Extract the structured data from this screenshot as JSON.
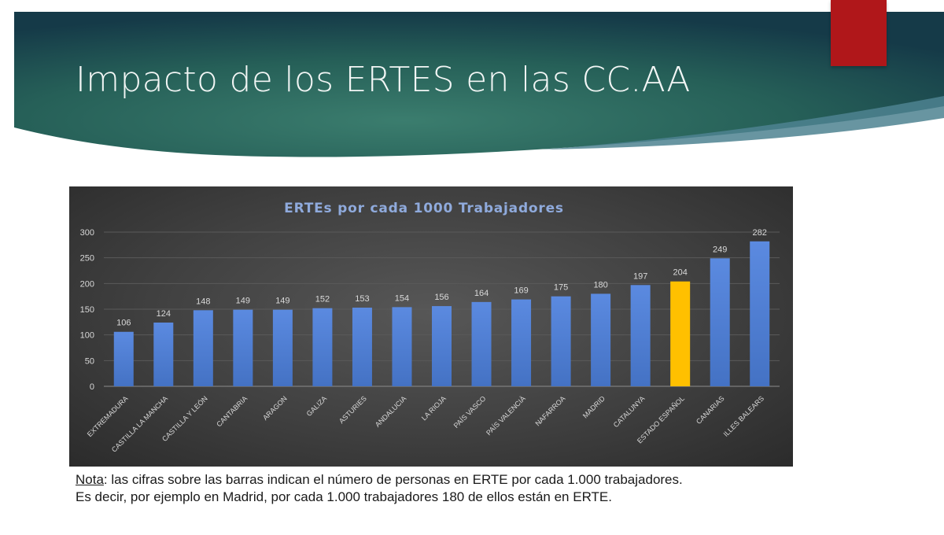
{
  "slide": {
    "title": "Impacto de los ERTES en las CC.AA",
    "note_label": "Nota",
    "note_line1": ": las cifras sobre las barras indican el número de personas en ERTE por cada 1.000 trabajadores.",
    "note_line2": "Es decir, por ejemplo en Madrid, por cada 1.000 trabajadores 180 de ellos están en ERTE.",
    "colors": {
      "banner_dark": "#143c4a",
      "banner_mid": "#2f7064",
      "accent_red": "#b0171a"
    }
  },
  "chart_data": {
    "type": "bar",
    "title": "ERTEs por cada 1000 Trabajadores",
    "categories": [
      "EXTREMADURA",
      "CASTILLA LA MANCHA",
      "CASTILLA Y LEÓN",
      "CANTABRIA",
      "ARAGON",
      "GALIZA",
      "ASTURIES",
      "ANDALUCIA",
      "LA RIOJA",
      "PAÍS VASCO",
      "PAÍS VALENCIÀ",
      "NAFARROA",
      "MADRID",
      "CATALUNYA",
      "ESTADO ESPAÑOL",
      "CANARIAS",
      "ILLES BALEARS"
    ],
    "values": [
      106,
      124,
      148,
      149,
      149,
      152,
      153,
      154,
      156,
      164,
      169,
      175,
      180,
      197,
      204,
      249,
      282
    ],
    "yticks": [
      0,
      50,
      100,
      150,
      200,
      250,
      300
    ],
    "ylim": [
      0,
      300
    ],
    "grid": true,
    "data_labels": true,
    "bar_color": "#4472c4",
    "highlight_category": "ESTADO ESPAÑOL",
    "highlight_color": "#ffc000"
  }
}
